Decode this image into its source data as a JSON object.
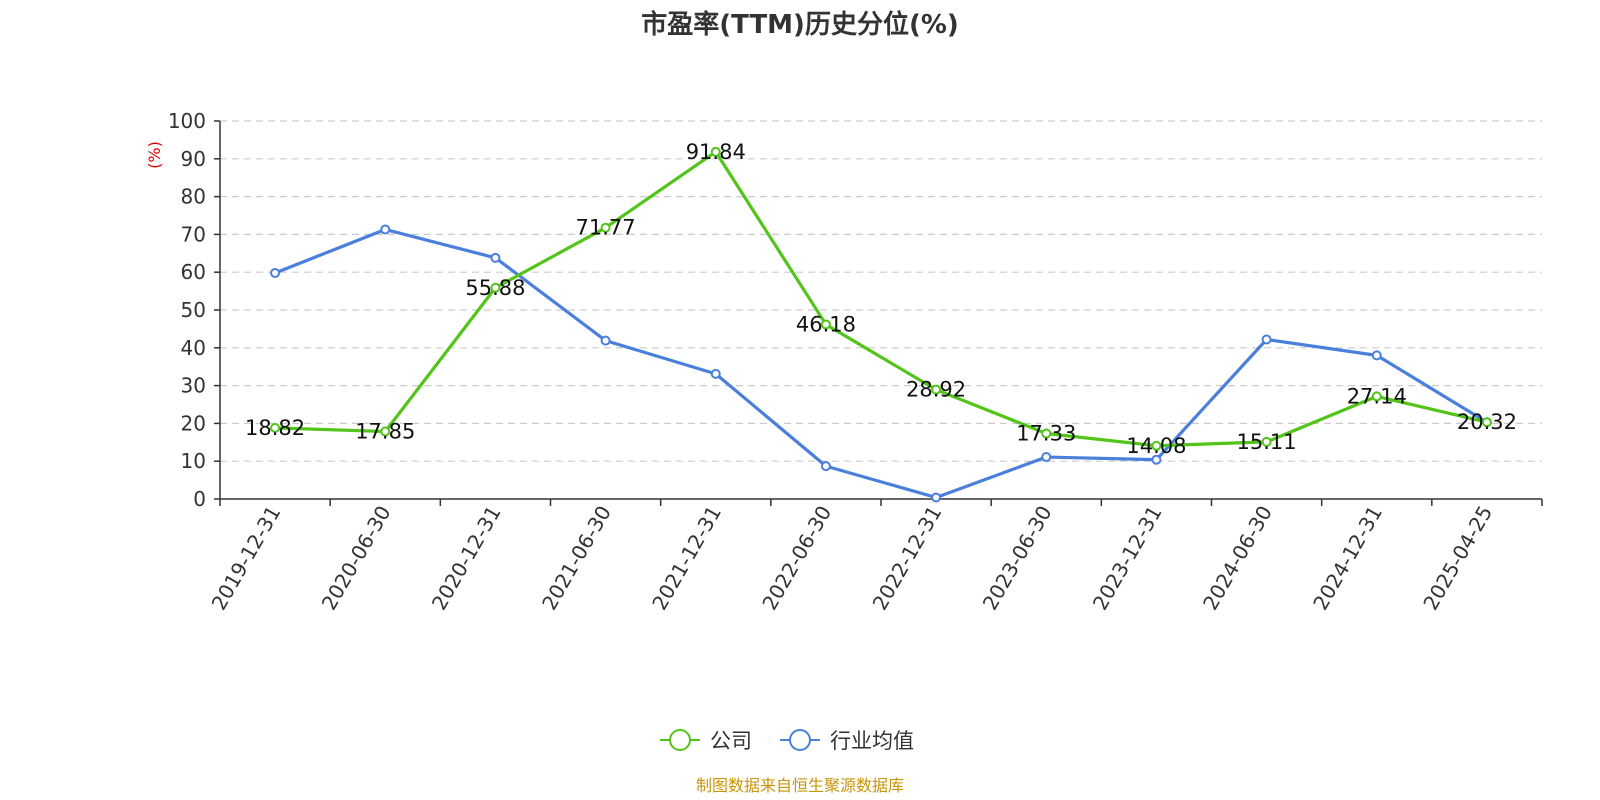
{
  "chart_data": {
    "type": "line",
    "title": "市盈率(TTM)历史分位(%)",
    "ylabel": "(%)",
    "ylim": [
      0,
      100
    ],
    "yticks": [
      0,
      10,
      20,
      30,
      40,
      50,
      60,
      70,
      80,
      90,
      100
    ],
    "grid": true,
    "legend_position": "bottom-center",
    "categories": [
      "2019-12-31",
      "2020-06-30",
      "2020-12-31",
      "2021-06-30",
      "2021-12-31",
      "2022-06-30",
      "2022-12-31",
      "2023-06-30",
      "2023-12-31",
      "2024-06-30",
      "2024-12-31",
      "2025-04-25"
    ],
    "series": [
      {
        "name": "公司",
        "color": "#52c41a",
        "values": [
          18.82,
          17.85,
          55.88,
          71.77,
          91.84,
          46.18,
          28.92,
          17.33,
          14.08,
          15.11,
          27.14,
          20.32
        ],
        "labels": [
          "18.82",
          "17.85",
          "55.88",
          "71.77",
          "91.84",
          "46.18",
          "28.92",
          "17.33",
          "14.08",
          "15.11",
          "27.14",
          "20.32"
        ],
        "show_labels": true
      },
      {
        "name": "行业均值",
        "color": "#4a7fdc",
        "values": [
          59.8,
          71.3,
          63.8,
          41.9,
          33.1,
          8.7,
          0.4,
          11.1,
          10.4,
          42.2,
          38.0,
          20.3
        ],
        "show_labels": false
      }
    ],
    "source": "制图数据来自恒生聚源数据库",
    "colors": {
      "title": "#333333",
      "unit": "#e00000",
      "source": "#c8960a",
      "grid": "#cccccc",
      "axis": "#333333"
    }
  }
}
